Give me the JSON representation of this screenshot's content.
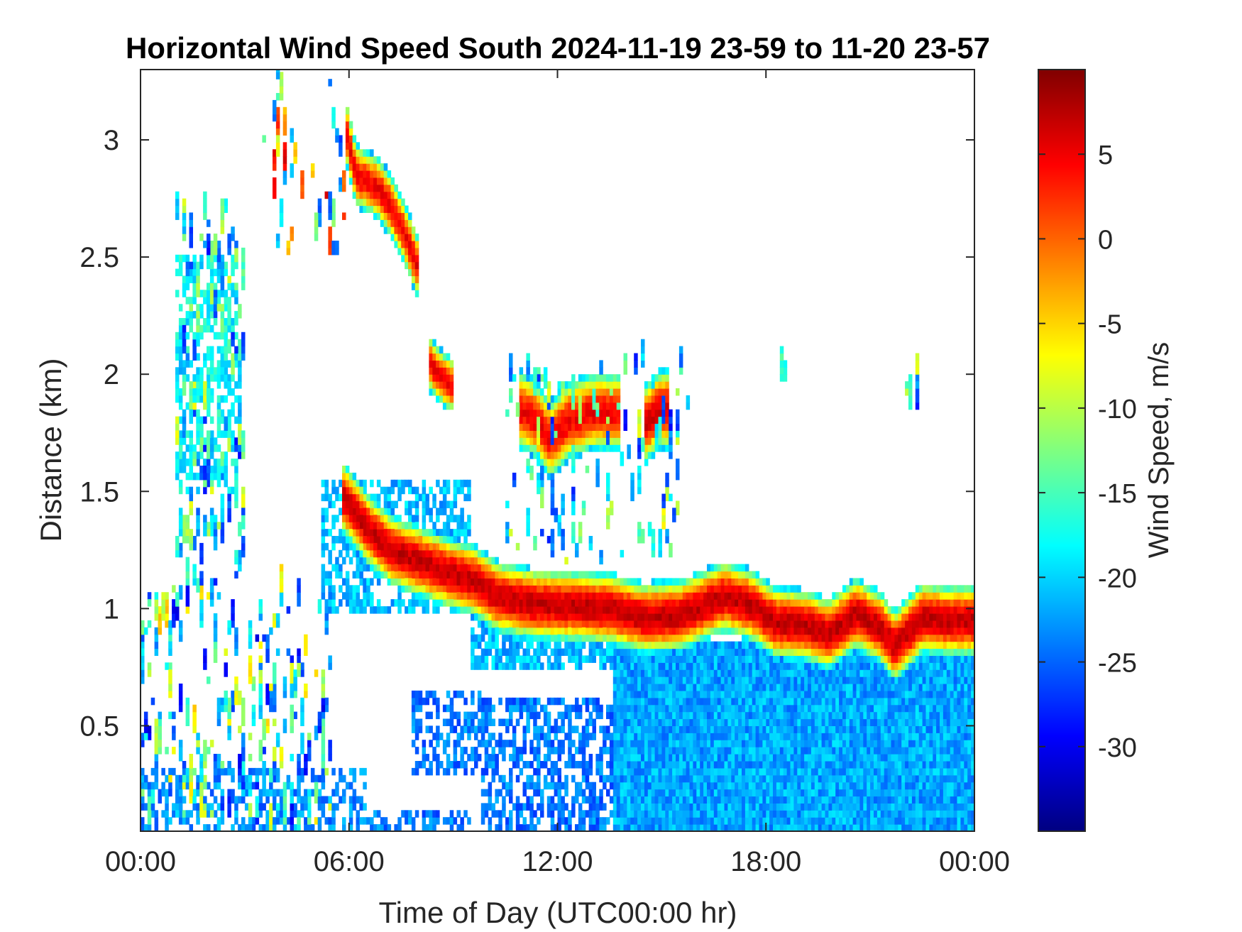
{
  "chart_data": {
    "type": "heatmap",
    "title": "Horizontal Wind Speed South 2024-11-19 23-59 to 11-20 23-57",
    "xlabel": "Time of Day (UTC00:00 hr)",
    "ylabel": "Distance (km)",
    "colorbar_label": "Wind Speed, m/s",
    "x_unit": "hour",
    "xlim": [
      0,
      24
    ],
    "ylim": [
      0.05,
      3.3
    ],
    "clim": [
      -35,
      10
    ],
    "colormap": "jet",
    "x_ticks": [
      {
        "value": 0,
        "label": "00:00"
      },
      {
        "value": 6,
        "label": "06:00"
      },
      {
        "value": 12,
        "label": "12:00"
      },
      {
        "value": 18,
        "label": "18:00"
      },
      {
        "value": 24,
        "label": "00:00"
      }
    ],
    "y_ticks": [
      {
        "value": 0.5,
        "label": "0.5"
      },
      {
        "value": 1,
        "label": "1"
      },
      {
        "value": 1.5,
        "label": "1.5"
      },
      {
        "value": 2,
        "label": "2"
      },
      {
        "value": 2.5,
        "label": "2.5"
      },
      {
        "value": 3,
        "label": "3"
      }
    ],
    "colorbar_ticks": [
      {
        "value": 5,
        "label": "5"
      },
      {
        "value": 0,
        "label": "0"
      },
      {
        "value": -5,
        "label": "-5"
      },
      {
        "value": -10,
        "label": "-10"
      },
      {
        "value": -15,
        "label": "-15"
      },
      {
        "value": -20,
        "label": "-20"
      },
      {
        "value": -25,
        "label": "-25"
      },
      {
        "value": -30,
        "label": "-30"
      }
    ],
    "regions": [
      {
        "t0": 13.6,
        "t1": 24,
        "d0": 0.05,
        "d1": 0.85,
        "v": -22,
        "density": 1.0
      },
      {
        "t0": 9.8,
        "t1": 13.6,
        "d0": 0.05,
        "d1": 0.6,
        "v": -24,
        "density": 0.6
      },
      {
        "t0": 7.8,
        "t1": 9.8,
        "d0": 0.3,
        "d1": 0.65,
        "v": -24,
        "density": 0.5
      },
      {
        "t0": 0,
        "t1": 6.5,
        "d0": 0.05,
        "d1": 0.3,
        "v": -23,
        "density": 0.5
      },
      {
        "t0": 6.5,
        "t1": 9.5,
        "d0": 0.05,
        "d1": 0.12,
        "v": -24,
        "density": 0.5
      },
      {
        "t0": 9.5,
        "t1": 13.6,
        "d0": 0.75,
        "d1": 1.0,
        "v": -21,
        "density": 0.8
      },
      {
        "t0": 5.2,
        "t1": 9.5,
        "d0": 1.0,
        "d1": 1.55,
        "v": -21,
        "density": 0.6
      },
      {
        "t0": 1.0,
        "t1": 2.8,
        "d0": 1.5,
        "d1": 2.5,
        "v": -18,
        "density": 0.5
      }
    ],
    "bands": [
      {
        "name": "boundary-layer-top",
        "points": [
          [
            5.8,
            1.48
          ],
          [
            6.6,
            1.33
          ],
          [
            7.2,
            1.25
          ],
          [
            8.9,
            1.15
          ],
          [
            9.6,
            1.12
          ],
          [
            10.3,
            1.05
          ],
          [
            11.3,
            1.02
          ],
          [
            12.5,
            1.01
          ],
          [
            13.5,
            1.0
          ],
          [
            14.5,
            0.96
          ],
          [
            15.5,
            0.97
          ],
          [
            16.8,
            1.05
          ],
          [
            17.5,
            1.02
          ],
          [
            18.3,
            0.94
          ],
          [
            19.2,
            0.93
          ],
          [
            19.8,
            0.89
          ],
          [
            20.6,
            0.98
          ],
          [
            21.3,
            0.92
          ],
          [
            21.7,
            0.84
          ],
          [
            22.5,
            0.96
          ],
          [
            23.2,
            0.95
          ],
          [
            24,
            0.95
          ]
        ],
        "v": 7,
        "width": 0.09
      },
      {
        "name": "upper-layer",
        "points": [
          [
            5.9,
            3.05
          ],
          [
            6.2,
            2.85
          ],
          [
            6.8,
            2.8
          ],
          [
            7.2,
            2.72
          ],
          [
            7.6,
            2.6
          ],
          [
            8.0,
            2.45
          ]
        ],
        "v": 5,
        "width": 0.08
      },
      {
        "name": "layer-2km",
        "points": [
          [
            8.3,
            2.05
          ],
          [
            8.7,
            1.98
          ],
          [
            9.0,
            1.95
          ]
        ],
        "v": 5,
        "width": 0.07
      },
      {
        "name": "cloud-1",
        "points": [
          [
            10.9,
            1.85
          ],
          [
            11.3,
            1.82
          ],
          [
            11.8,
            1.72
          ],
          [
            12.3,
            1.8
          ],
          [
            13.0,
            1.84
          ],
          [
            13.8,
            1.84
          ]
        ],
        "v": 5,
        "width": 0.1
      },
      {
        "name": "cloud-2",
        "points": [
          [
            14.5,
            1.78
          ],
          [
            14.9,
            1.85
          ],
          [
            15.2,
            1.85
          ]
        ],
        "v": 6,
        "width": 0.1
      }
    ],
    "scatter_zones": [
      {
        "t0": 0,
        "t1": 5.5,
        "d0": 0.05,
        "d1": 1.1,
        "vmin": -30,
        "vmax": -5,
        "count": 240
      },
      {
        "t0": 1.0,
        "t1": 3.0,
        "d0": 1.1,
        "d1": 2.7,
        "vmin": -28,
        "vmax": -8,
        "count": 160
      },
      {
        "t0": 3.5,
        "t1": 6.0,
        "d0": 2.5,
        "d1": 3.3,
        "vmin": -28,
        "vmax": 6,
        "count": 40
      },
      {
        "t0": 10.5,
        "t1": 15.8,
        "d0": 1.2,
        "d1": 2.05,
        "vmin": -28,
        "vmax": -8,
        "count": 120
      },
      {
        "t0": 18.4,
        "t1": 18.6,
        "d0": 1.97,
        "d1": 2.02,
        "vmin": -18,
        "vmax": -15,
        "count": 3
      },
      {
        "t0": 22.0,
        "t1": 22.5,
        "d0": 1.85,
        "d1": 2.0,
        "vmin": -28,
        "vmax": -5,
        "count": 8
      }
    ]
  }
}
